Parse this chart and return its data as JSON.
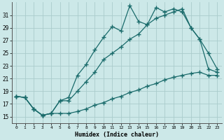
{
  "xlabel": "Humidex (Indice chaleur)",
  "background_color": "#cce8e8",
  "grid_color": "#aacccc",
  "line_color": "#1a6b6b",
  "xlim": [
    -0.5,
    23.5
  ],
  "ylim": [
    14.0,
    33.0
  ],
  "xticks": [
    0,
    1,
    2,
    3,
    4,
    5,
    6,
    7,
    8,
    9,
    10,
    11,
    12,
    13,
    14,
    15,
    16,
    17,
    18,
    19,
    20,
    21,
    22,
    23
  ],
  "yticks": [
    15,
    17,
    19,
    21,
    23,
    25,
    27,
    29,
    31
  ],
  "line1_x": [
    0,
    1,
    2,
    3,
    4,
    5,
    6,
    7,
    8,
    9,
    10,
    11,
    12,
    13,
    14,
    15,
    16,
    17,
    18,
    19,
    20,
    21,
    22,
    23
  ],
  "line1_y": [
    18.2,
    18.0,
    16.2,
    15.2,
    15.5,
    17.5,
    18.0,
    21.5,
    23.2,
    25.5,
    27.5,
    29.2,
    28.5,
    32.5,
    30.0,
    29.5,
    32.2,
    31.5,
    32.0,
    31.5,
    29.0,
    27.2,
    25.0,
    22.5
  ],
  "line2_x": [
    0,
    1,
    2,
    3,
    4,
    5,
    6,
    7,
    8,
    9,
    10,
    11,
    12,
    13,
    14,
    15,
    16,
    17,
    18,
    19,
    20,
    21,
    22,
    23
  ],
  "line2_y": [
    18.2,
    18.0,
    16.2,
    15.2,
    15.5,
    17.5,
    17.5,
    19.0,
    20.5,
    22.0,
    24.0,
    25.0,
    26.0,
    27.2,
    28.0,
    29.5,
    30.5,
    31.0,
    31.5,
    32.0,
    29.0,
    27.2,
    22.5,
    22.0
  ],
  "line3_x": [
    0,
    1,
    2,
    3,
    4,
    5,
    6,
    7,
    8,
    9,
    10,
    11,
    12,
    13,
    14,
    15,
    16,
    17,
    18,
    19,
    20,
    21,
    22,
    23
  ],
  "line3_y": [
    18.2,
    18.0,
    16.2,
    15.2,
    15.5,
    15.5,
    15.5,
    15.8,
    16.2,
    16.8,
    17.2,
    17.8,
    18.2,
    18.8,
    19.2,
    19.8,
    20.2,
    20.8,
    21.2,
    21.5,
    21.8,
    22.0,
    21.5,
    21.5
  ]
}
